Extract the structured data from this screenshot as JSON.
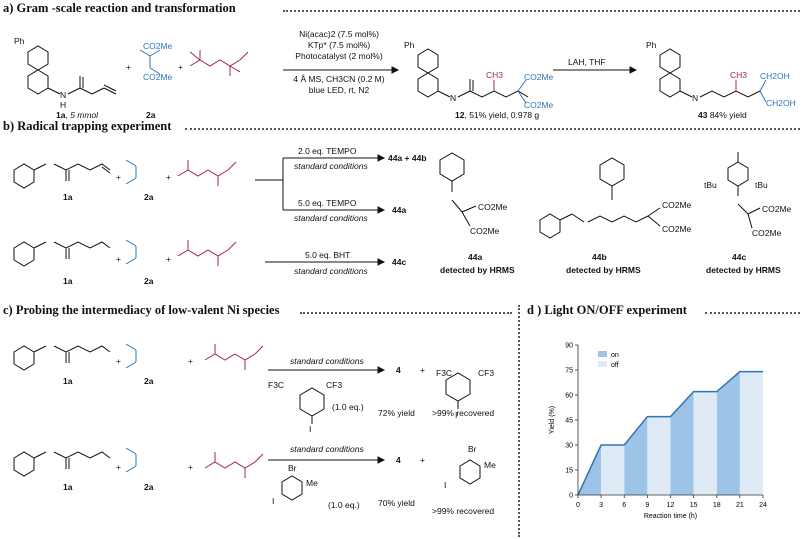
{
  "sections": {
    "a": "a) Gram -scale reaction and  transformation",
    "b": "b) Radical trapping experiment",
    "c": "c) Probing the intermediacy of low-valent Ni species",
    "d": "d ) Light ON/OFF experiment"
  },
  "a": {
    "label_1a": "1a",
    "label_1a_amount": "5 mmol",
    "label_2a": "2a",
    "cond1": "Ni(acac)2 (7.5 mol%)",
    "cond2": "KTp* (7.5 mol%)",
    "cond3": "Photocatalyst (2 mol%)",
    "cond4": "4 Å MS, CH3CN (0.2 M)",
    "cond5": "blue LED, rt, N2",
    "product12": "12",
    "product12_yield": ", 51% yield, 0.978 g",
    "reduction": "LAH, THF",
    "product43": "43",
    "product43_yield": " 84% yield",
    "ch3": "CH3",
    "co2me": "CO2Me",
    "ch2oh": "CH2OH",
    "ph": "Ph",
    "nh": "N",
    "h": "H"
  },
  "b": {
    "tempo2": "2.0 eq. TEMPO",
    "tempo5": "5.0 eq. TEMPO",
    "bht": "5.0 eq. BHT",
    "std": "standard conditions",
    "p44a44b": "44a  +   44b",
    "p44a": "44a",
    "p44c": "44c",
    "l44a": "44a",
    "l44b": "44b",
    "l44c": "44c",
    "detected": "detected by HRMS",
    "tbu": "tBu",
    "label_1a": "1a",
    "label_2a": "2a"
  },
  "c": {
    "std": "standard conditions",
    "eq": "(1.0 eq.)",
    "prod4": "4",
    "plus": "+",
    "yield72": "72% yield",
    "yield70": "70% yield",
    "recovered": ">99% recovered",
    "f3c": "F3C",
    "cf3": "CF3",
    "i": "I",
    "br": "Br",
    "me": "Me",
    "label_1a": "1a",
    "label_2a": "2a"
  },
  "chart_data": {
    "type": "area",
    "xlabel": "Reaction time (h)",
    "ylabel": "Yield (%)",
    "xlim": [
      0,
      24
    ],
    "ylim": [
      0,
      90
    ],
    "xticks": [
      0,
      3,
      6,
      9,
      12,
      15,
      18,
      21,
      24
    ],
    "yticks": [
      0,
      15,
      30,
      45,
      60,
      75,
      90
    ],
    "x": [
      0,
      3,
      6,
      9,
      12,
      15,
      18,
      21,
      24
    ],
    "y": [
      0,
      30,
      30,
      47,
      47,
      62,
      62,
      74,
      74
    ],
    "on_intervals": [
      [
        0,
        3
      ],
      [
        6,
        9
      ],
      [
        12,
        15
      ],
      [
        18,
        21
      ]
    ],
    "off_intervals": [
      [
        3,
        6
      ],
      [
        9,
        12
      ],
      [
        15,
        18
      ],
      [
        21,
        24
      ]
    ],
    "legend": [
      "on",
      "off"
    ],
    "legend_position": "top-right",
    "colors": {
      "on": "#9dc3e6",
      "off": "#deebf7",
      "line": "#2e75b6"
    }
  }
}
